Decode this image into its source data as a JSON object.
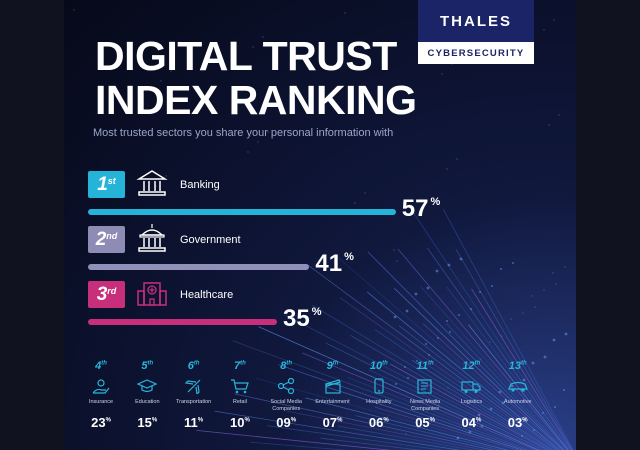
{
  "brand": {
    "name": "THALES",
    "division": "CYBERSECURITY",
    "color": "#1b2466"
  },
  "title_line1": "DIGITAL TRUST",
  "title_line2": "INDEX RANKING",
  "subtitle": "Most trusted sectors you share your personal information with",
  "percent_symbol": "%",
  "chart_data": {
    "type": "bar",
    "title": "DIGITAL TRUST INDEX RANKING",
    "subtitle": "Most trusted sectors you share your personal information with",
    "unit": "%",
    "categories": [
      "Banking",
      "Government",
      "Healthcare"
    ],
    "values": [
      57,
      41,
      35
    ],
    "ranks": [
      "1",
      "2",
      "3"
    ],
    "rank_suffixes": [
      "st",
      "nd",
      "rd"
    ],
    "value_labels": [
      "57",
      "41",
      "35"
    ],
    "bar_colors": [
      "#26b3d8",
      "#9190b8",
      "#c72f7a"
    ],
    "badge_colors": [
      "#26b3d8",
      "#8e8cb4",
      "#c72f7a"
    ],
    "icons": [
      "bank-icon",
      "government-building-icon",
      "hospital-icon"
    ],
    "xlim": [
      0,
      100
    ],
    "other_sectors": {
      "categories": [
        "Insurance",
        "Education",
        "Transportation",
        "Retail",
        "Social Media Companies",
        "Entertainment",
        "Hospitality",
        "News Media Companies",
        "Logistics",
        "Automotive"
      ],
      "ranks": [
        "4",
        "5",
        "6",
        "7",
        "8",
        "9",
        "10",
        "11",
        "12",
        "13"
      ],
      "rank_suffix": "th",
      "values": [
        23,
        15,
        11,
        10,
        9,
        7,
        6,
        5,
        4,
        3
      ],
      "value_labels": [
        "23",
        "15",
        "11",
        "10",
        "09",
        "07",
        "06",
        "05",
        "04",
        "03"
      ],
      "icons": [
        "insurance-icon",
        "graduation-cap-icon",
        "airplane-icon",
        "shopping-cart-icon",
        "share-icon",
        "clapperboard-icon",
        "phone-icon",
        "newspaper-icon",
        "truck-icon",
        "car-icon"
      ]
    }
  }
}
